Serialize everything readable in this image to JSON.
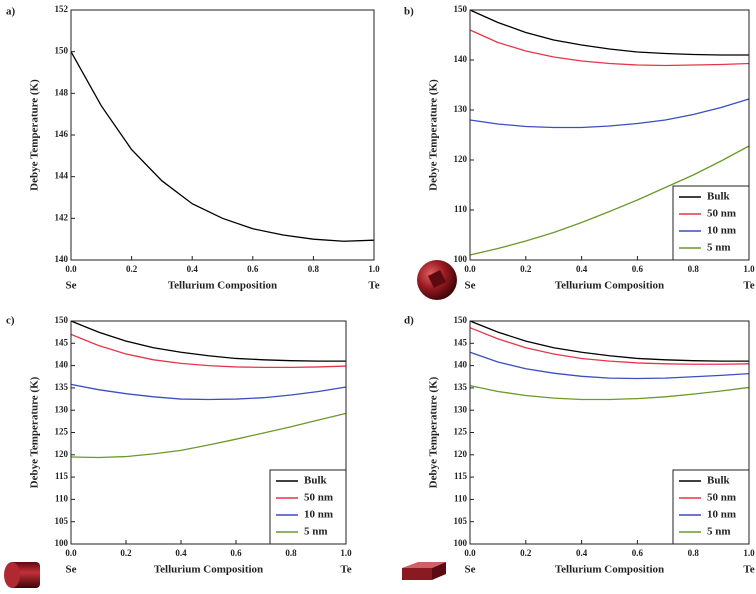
{
  "chart_data": [
    {
      "type": "line",
      "panel_label": "a)",
      "xlabel": "Tellurium Composition",
      "ylabel": "Debye Temperature (K)",
      "x_start_label": "Se",
      "x_end_label": "Te",
      "x": [
        0,
        0.1,
        0.2,
        0.3,
        0.4,
        0.5,
        0.6,
        0.7,
        0.8,
        0.9,
        1.0
      ],
      "xlim": [
        0,
        1
      ],
      "xticks": [
        {
          "value": 0,
          "label": "0.0"
        },
        {
          "value": 0.2,
          "label": "0.2"
        },
        {
          "value": 0.4,
          "label": "0.4"
        },
        {
          "value": 0.6,
          "label": "0.6"
        },
        {
          "value": 0.8,
          "label": "0.8"
        },
        {
          "value": 1,
          "label": "1.0"
        }
      ],
      "ylim": [
        140,
        152
      ],
      "yticks": [
        140,
        142,
        144,
        146,
        148,
        150,
        152
      ],
      "series": [
        {
          "color": "#000000",
          "values": [
            150,
            147.4,
            145.3,
            143.8,
            142.7,
            142.0,
            141.5,
            141.2,
            141.0,
            140.9,
            140.95
          ]
        }
      ]
    },
    {
      "type": "line",
      "panel_label": "b)",
      "xlabel": "Tellurium Composition",
      "ylabel": "Debye Temperature (K)",
      "x_start_label": "Se",
      "x_end_label": "Te",
      "legend": "lower right",
      "x": [
        0,
        0.1,
        0.2,
        0.3,
        0.4,
        0.5,
        0.6,
        0.7,
        0.8,
        0.9,
        1.0
      ],
      "xlim": [
        0,
        1
      ],
      "xticks": [
        {
          "value": 0,
          "label": "0.0"
        },
        {
          "value": 0.2,
          "label": "0.2"
        },
        {
          "value": 0.4,
          "label": "0.4"
        },
        {
          "value": 0.6,
          "label": "0.6"
        },
        {
          "value": 0.8,
          "label": "0.8"
        },
        {
          "value": 1,
          "label": "1.0"
        }
      ],
      "ylim": [
        100,
        150
      ],
      "yticks": [
        100,
        110,
        120,
        130,
        140,
        150
      ],
      "series": [
        {
          "name": "Bulk",
          "color": "#000000",
          "values": [
            150,
            147.5,
            145.5,
            144,
            143,
            142.2,
            141.6,
            141.3,
            141.1,
            141,
            141
          ]
        },
        {
          "name": "50 nm",
          "color": "#e8354a",
          "values": [
            146,
            143.5,
            141.8,
            140.6,
            139.8,
            139.3,
            139,
            138.9,
            139,
            139.1,
            139.3
          ]
        },
        {
          "name": "10 nm",
          "color": "#3a4fc0",
          "values": [
            128,
            127.2,
            126.7,
            126.5,
            126.5,
            126.8,
            127.3,
            128,
            129.1,
            130.5,
            132.2
          ]
        },
        {
          "name": "5 nm",
          "color": "#6a9a2a",
          "values": [
            101,
            102.3,
            103.8,
            105.5,
            107.5,
            109.7,
            112,
            114.5,
            117,
            119.8,
            122.8
          ]
        }
      ]
    },
    {
      "type": "line",
      "panel_label": "c)",
      "xlabel": "Tellurium Composition",
      "ylabel": "Debye Temperature (K)",
      "x_start_label": "Se",
      "x_end_label": "Te",
      "legend": "lower right",
      "x": [
        0,
        0.1,
        0.2,
        0.3,
        0.4,
        0.5,
        0.6,
        0.7,
        0.8,
        0.9,
        1.0
      ],
      "xlim": [
        0,
        1
      ],
      "xticks": [
        {
          "value": 0,
          "label": "0.0"
        },
        {
          "value": 0.2,
          "label": "0.2"
        },
        {
          "value": 0.4,
          "label": "0.4"
        },
        {
          "value": 0.6,
          "label": "0.6"
        },
        {
          "value": 0.8,
          "label": "0.8"
        },
        {
          "value": 1,
          "label": "1.0"
        }
      ],
      "ylim": [
        100,
        150
      ],
      "yticks": [
        100,
        105,
        110,
        115,
        120,
        125,
        130,
        135,
        140,
        145,
        150
      ],
      "series": [
        {
          "name": "Bulk",
          "color": "#000000",
          "values": [
            150,
            147.5,
            145.5,
            144,
            143,
            142.2,
            141.6,
            141.3,
            141.1,
            141,
            141
          ]
        },
        {
          "name": "50 nm",
          "color": "#e8354a",
          "values": [
            147,
            144.5,
            142.6,
            141.3,
            140.5,
            140,
            139.7,
            139.6,
            139.6,
            139.7,
            139.9
          ]
        },
        {
          "name": "10 nm",
          "color": "#3a4fc0",
          "values": [
            135.8,
            134.6,
            133.7,
            133,
            132.5,
            132.4,
            132.5,
            132.8,
            133.4,
            134.2,
            135.2
          ]
        },
        {
          "name": "5 nm",
          "color": "#6a9a2a",
          "values": [
            119.5,
            119.4,
            119.6,
            120.2,
            121,
            122.2,
            123.5,
            124.9,
            126.3,
            127.8,
            129.3
          ]
        }
      ]
    },
    {
      "type": "line",
      "panel_label": "d)",
      "xlabel": "Tellurium Composition",
      "ylabel": "Debye Temperature (K)",
      "x_start_label": "Se",
      "x_end_label": "Te",
      "legend": "lower right",
      "x": [
        0,
        0.1,
        0.2,
        0.3,
        0.4,
        0.5,
        0.6,
        0.7,
        0.8,
        0.9,
        1.0
      ],
      "xlim": [
        0,
        1
      ],
      "xticks": [
        {
          "value": 0,
          "label": "0.0"
        },
        {
          "value": 0.2,
          "label": "0.2"
        },
        {
          "value": 0.4,
          "label": "0.4"
        },
        {
          "value": 0.6,
          "label": "0.6"
        },
        {
          "value": 0.8,
          "label": "0.8"
        },
        {
          "value": 1,
          "label": "1.0"
        }
      ],
      "ylim": [
        100,
        150
      ],
      "yticks": [
        100,
        105,
        110,
        115,
        120,
        125,
        130,
        135,
        140,
        145,
        150
      ],
      "series": [
        {
          "name": "Bulk",
          "color": "#000000",
          "values": [
            150,
            147.5,
            145.5,
            144,
            143,
            142.2,
            141.6,
            141.3,
            141.1,
            141,
            141
          ]
        },
        {
          "name": "50 nm",
          "color": "#e8354a",
          "values": [
            148.5,
            146,
            144,
            142.6,
            141.6,
            141,
            140.6,
            140.4,
            140.3,
            140.3,
            140.4
          ]
        },
        {
          "name": "10 nm",
          "color": "#3a4fc0",
          "values": [
            143,
            140.8,
            139.3,
            138.3,
            137.6,
            137.2,
            137.1,
            137.2,
            137.5,
            137.8,
            138.2
          ]
        },
        {
          "name": "5 nm",
          "color": "#6a9a2a",
          "values": [
            135.5,
            134.2,
            133.3,
            132.7,
            132.4,
            132.4,
            132.6,
            133,
            133.6,
            134.3,
            135.1
          ]
        }
      ]
    }
  ]
}
